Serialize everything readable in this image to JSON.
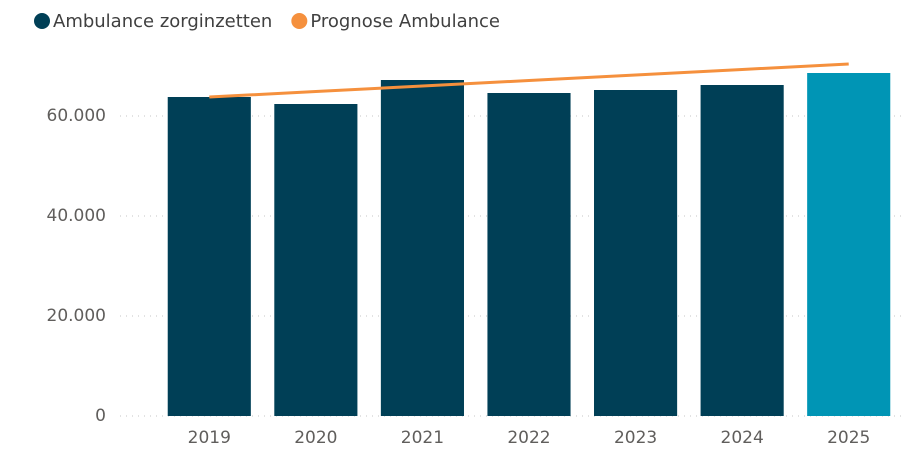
{
  "chart_data": {
    "type": "bar",
    "categories": [
      "2019",
      "2020",
      "2021",
      "2022",
      "2023",
      "2024",
      "2025"
    ],
    "series": [
      {
        "name": "Ambulance zorginzetten",
        "type": "bar",
        "color": "#003f56",
        "colors": [
          "#003f56",
          "#003f56",
          "#003f56",
          "#003f56",
          "#003f56",
          "#003f56",
          "#0095b5"
        ],
        "values": [
          63800,
          62400,
          67200,
          64600,
          65200,
          66200,
          68600
        ]
      },
      {
        "name": "Prognose Ambulance",
        "type": "line",
        "color": "#f5903d",
        "values": [
          63800,
          64900,
          66000,
          67100,
          68200,
          69300,
          70400
        ]
      }
    ],
    "ylim": [
      0,
      72000
    ],
    "yticks": [
      0,
      {
        "value": 20000,
        "label": "20.000"
      },
      {
        "value": 40000,
        "label": "40.000"
      },
      {
        "value": 60000,
        "label": "60.000"
      }
    ],
    "grid": true,
    "legend": "top"
  }
}
